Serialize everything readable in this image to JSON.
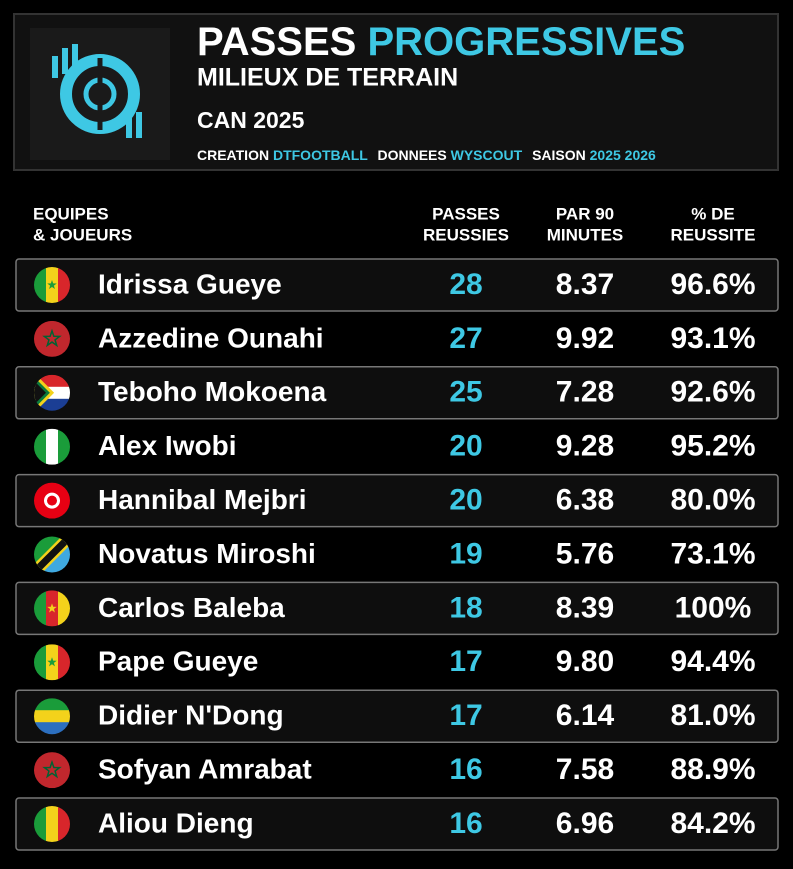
{
  "header": {
    "title": [
      "PASSES",
      "PROGRESSIVES"
    ],
    "subtitle": "MILIEUX DE TERRAIN",
    "competition": "CAN 2025",
    "credits": [
      "CREATION",
      "DTFOOTBALL",
      "DONNEES",
      "WYSCOUT",
      "SAISON",
      "2025 2026"
    ]
  },
  "table": {
    "columns": [
      [
        "EQUIPES",
        "& JOUEURS"
      ],
      [
        "PASSES",
        "REUSSIES"
      ],
      [
        "PAR 90",
        "MINUTES"
      ],
      [
        "% DE",
        "REUSSITE"
      ]
    ],
    "rows": [
      [
        "Idrissa Gueye",
        "28",
        "8.37",
        "96.6%"
      ],
      [
        "Azzedine Ounahi",
        "27",
        "9.92",
        "93.1%"
      ],
      [
        "Teboho Mokoena",
        "25",
        "7.28",
        "92.6%"
      ],
      [
        "Alex Iwobi",
        "20",
        "9.28",
        "95.2%"
      ],
      [
        "Hannibal Mejbri",
        "20",
        "6.38",
        "80.0%"
      ],
      [
        "Novatus Miroshi",
        "19",
        "5.76",
        "73.1%"
      ],
      [
        "Carlos Baleba",
        "18",
        "8.39",
        "100%"
      ],
      [
        "Pape Gueye",
        "17",
        "9.80",
        "94.4%"
      ],
      [
        "Didier N'Dong",
        "17",
        "6.14",
        "81.0%"
      ],
      [
        "Sofyan Amrabat",
        "16",
        "7.58",
        "88.9%"
      ],
      [
        "Aliou Dieng",
        "16",
        "6.96",
        "84.2%"
      ]
    ]
  }
}
